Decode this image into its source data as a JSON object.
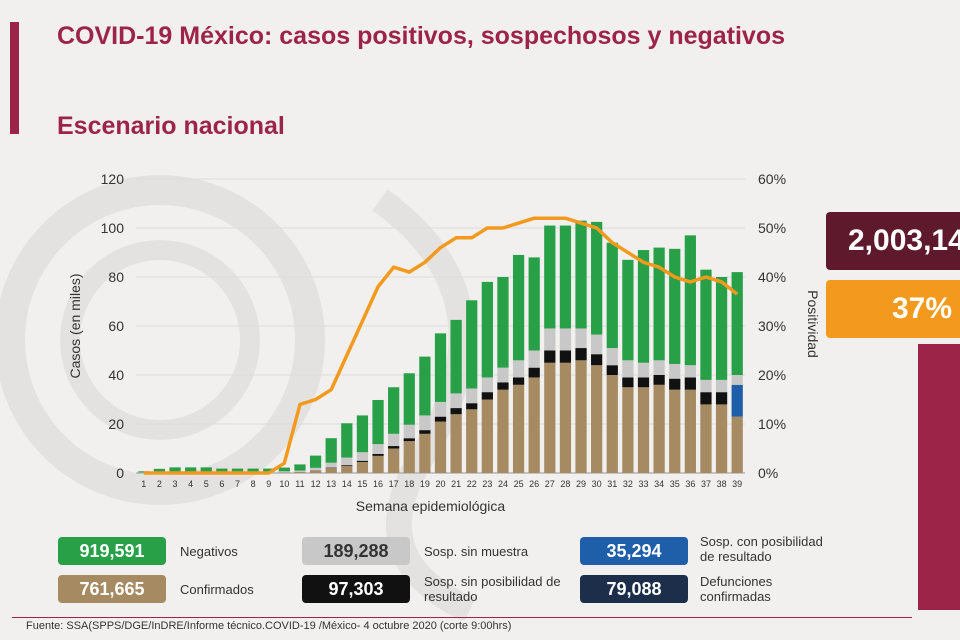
{
  "header": {
    "title": "COVID-19 México: casos positivos, sospechosos y negativos",
    "subtitle": "Escenario nacional"
  },
  "kpis": {
    "total_tests": "2,003,14",
    "positivity": "37%"
  },
  "legend": [
    {
      "id": "negativos",
      "value": "919,591",
      "label": "Negativos",
      "color": "#27a047",
      "text_color": "#ffffff"
    },
    {
      "id": "sosp-sin-muestra",
      "value": "189,288",
      "label": "Sosp. sin muestra",
      "color": "#c8c8c8",
      "text_color": "#333333"
    },
    {
      "id": "sosp-con-posibilidad",
      "value": "35,294",
      "label": "Sosp. con posibilidad de resultado",
      "color": "#1f5ea8",
      "text_color": "#ffffff"
    },
    {
      "id": "confirmados",
      "value": "761,665",
      "label": "Confirmados",
      "color": "#a58a62",
      "text_color": "#ffffff"
    },
    {
      "id": "sosp-sin-posibilidad",
      "value": "97,303",
      "label": "Sosp. sin posibilidad de resultado",
      "color": "#111111",
      "text_color": "#ffffff"
    },
    {
      "id": "defunciones",
      "value": "79,088",
      "label": "Defunciones confirmadas",
      "color": "#1c2e4a",
      "text_color": "#ffffff"
    }
  ],
  "footer": {
    "source": "Fuente: SSA(SPPS/DGE/InDRE/Informe técnico.COVID-19 /México- 4 octubre 2020 (corte 9:00hrs)"
  },
  "chart_data": {
    "type": "bar",
    "stacked": true,
    "xlabel": "Semana epidemiológica",
    "ylabel": "Casos (en miles)",
    "y2label": "Positividad",
    "ylim": [
      0,
      120
    ],
    "y2lim": [
      0,
      60
    ],
    "yticks": [
      "0",
      "20",
      "40",
      "60",
      "80",
      "100",
      "120"
    ],
    "y2ticks": [
      "0%",
      "10%",
      "20%",
      "30%",
      "40%",
      "50%",
      "60%"
    ],
    "categories": [
      "1",
      "2",
      "3",
      "4",
      "5",
      "6",
      "7",
      "8",
      "9",
      "10",
      "11",
      "12",
      "13",
      "14",
      "15",
      "16",
      "17",
      "18",
      "19",
      "20",
      "21",
      "22",
      "23",
      "24",
      "25",
      "26",
      "27",
      "28",
      "29",
      "30",
      "31",
      "32",
      "33",
      "34",
      "35",
      "36",
      "37",
      "38",
      "39"
    ],
    "series": [
      {
        "name": "Confirmados",
        "color": "#a58a62",
        "values": [
          0,
          0,
          0,
          0,
          0,
          0,
          0,
          0,
          0,
          0.2,
          0.4,
          1,
          2,
          3,
          4.5,
          7,
          10,
          13,
          16,
          21,
          24,
          26,
          30,
          34,
          36,
          39,
          45,
          45,
          46,
          44,
          40,
          35,
          35,
          36,
          34,
          34,
          28,
          28,
          23
        ]
      },
      {
        "name": "Sosp. sin posibilidad de resultado",
        "color": "#111111",
        "values": [
          0,
          0,
          0,
          0,
          0,
          0,
          0,
          0,
          0,
          0,
          0,
          0.1,
          0.2,
          0.3,
          0.5,
          0.8,
          1,
          1.2,
          1.5,
          2,
          2.5,
          2.5,
          3,
          3,
          3,
          4,
          5,
          5,
          5,
          4.5,
          4,
          4,
          4,
          4,
          4.5,
          5,
          5,
          5,
          0
        ]
      },
      {
        "name": "Defunciones confirmadas",
        "color": "#1c2e4a",
        "values": [
          0,
          0,
          0,
          0,
          0,
          0,
          0,
          0,
          0,
          0,
          0,
          0,
          0,
          0,
          0,
          0,
          0,
          0,
          0,
          0,
          0,
          0,
          0,
          0,
          0,
          0,
          0,
          0,
          0,
          0,
          0,
          0,
          0,
          0,
          0,
          0,
          0,
          0,
          0
        ]
      },
      {
        "name": "Sosp. con posibilidad de resultado",
        "color": "#1f5ea8",
        "values": [
          0,
          0,
          0,
          0,
          0,
          0,
          0,
          0,
          0,
          0,
          0,
          0,
          0,
          0,
          0,
          0,
          0,
          0,
          0,
          0,
          0,
          0,
          0,
          0,
          0,
          0,
          0,
          0,
          0,
          0,
          0,
          0,
          0,
          0,
          0,
          0,
          0,
          0,
          13
        ]
      },
      {
        "name": "Sosp. sin muestra",
        "color": "#c8c8c8",
        "values": [
          0.2,
          0.2,
          0.3,
          0.3,
          0.3,
          0.3,
          0.3,
          0.3,
          0.3,
          0.5,
          0.6,
          1,
          2,
          3,
          3.5,
          4,
          5,
          5.5,
          6,
          6,
          6,
          6,
          6,
          6,
          7,
          7,
          9,
          9,
          8,
          8,
          7,
          7,
          6,
          6,
          6,
          5,
          5,
          5,
          4
        ]
      },
      {
        "name": "Negativos",
        "color": "#27a047",
        "values": [
          0.5,
          1.5,
          2,
          2,
          2,
          1.5,
          1.5,
          1.5,
          1.5,
          1.5,
          2.5,
          5,
          10,
          14,
          15,
          18,
          19,
          21,
          24,
          28,
          30,
          36,
          39,
          37,
          43,
          38,
          42,
          42,
          44,
          46,
          43,
          41,
          46,
          46,
          47,
          53,
          45,
          42,
          42
        ]
      }
    ],
    "line": {
      "name": "Positividad",
      "color": "#f39a1e",
      "axis": "y2",
      "values": [
        0,
        0,
        0,
        0,
        0,
        0,
        0,
        0,
        0,
        2,
        14,
        15,
        17,
        24,
        31,
        38,
        42,
        41,
        43,
        46,
        48,
        48,
        50,
        50,
        51,
        52,
        52,
        52,
        51,
        50,
        47,
        45,
        43,
        42,
        40,
        39,
        40,
        39,
        36.5
      ]
    }
  }
}
